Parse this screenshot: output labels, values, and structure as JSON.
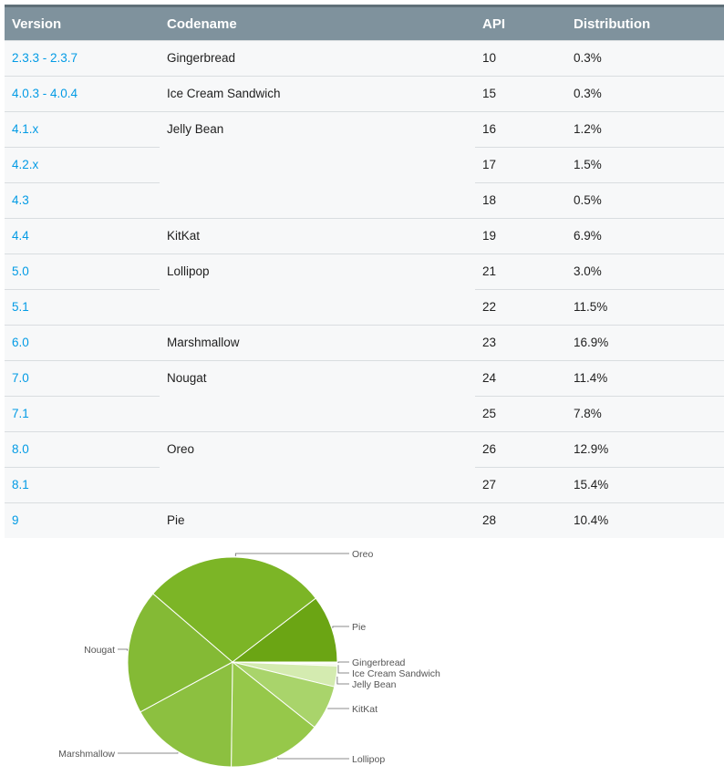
{
  "table": {
    "headers": [
      "Version",
      "Codename",
      "API",
      "Distribution"
    ]
  },
  "chart_data": {
    "type": "pie",
    "slices": [
      {
        "name": "Gingerbread",
        "value": 0.3,
        "color": "#fafcf5"
      },
      {
        "name": "Ice Cream Sandwich",
        "value": 0.3,
        "color": "#eef6dc"
      },
      {
        "name": "Jelly Bean",
        "value": 3.2,
        "color": "#d4ebb0"
      },
      {
        "name": "KitKat",
        "value": 6.9,
        "color": "#a9d46b"
      },
      {
        "name": "Lollipop",
        "value": 14.5,
        "color": "#96c84a"
      },
      {
        "name": "Marshmallow",
        "value": 16.9,
        "color": "#8cc040"
      },
      {
        "name": "Nougat",
        "value": 19.2,
        "color": "#84ba35"
      },
      {
        "name": "Oreo",
        "value": 28.3,
        "color": "#7cb526"
      },
      {
        "name": "Pie",
        "value": 10.4,
        "color": "#6ba514"
      }
    ],
    "table_rows": [
      {
        "version": "2.3.3 - 2.3.7",
        "codename": "Gingerbread",
        "api": "10",
        "distribution": "0.3%"
      },
      {
        "version": "4.0.3 - 4.0.4",
        "codename": "Ice Cream Sandwich",
        "api": "15",
        "distribution": "0.3%"
      },
      {
        "version": "4.1.x",
        "codename": "Jelly Bean",
        "api": "16",
        "distribution": "1.2%"
      },
      {
        "version": "4.2.x",
        "codename": "",
        "api": "17",
        "distribution": "1.5%"
      },
      {
        "version": "4.3",
        "codename": "",
        "api": "18",
        "distribution": "0.5%"
      },
      {
        "version": "4.4",
        "codename": "KitKat",
        "api": "19",
        "distribution": "6.9%"
      },
      {
        "version": "5.0",
        "codename": "Lollipop",
        "api": "21",
        "distribution": "3.0%"
      },
      {
        "version": "5.1",
        "codename": "",
        "api": "22",
        "distribution": "11.5%"
      },
      {
        "version": "6.0",
        "codename": "Marshmallow",
        "api": "23",
        "distribution": "16.9%"
      },
      {
        "version": "7.0",
        "codename": "Nougat",
        "api": "24",
        "distribution": "11.4%"
      },
      {
        "version": "7.1",
        "codename": "",
        "api": "25",
        "distribution": "7.8%"
      },
      {
        "version": "8.0",
        "codename": "Oreo",
        "api": "26",
        "distribution": "12.9%"
      },
      {
        "version": "8.1",
        "codename": "",
        "api": "27",
        "distribution": "15.4%"
      },
      {
        "version": "9",
        "codename": "Pie",
        "api": "28",
        "distribution": "10.4%"
      }
    ]
  }
}
